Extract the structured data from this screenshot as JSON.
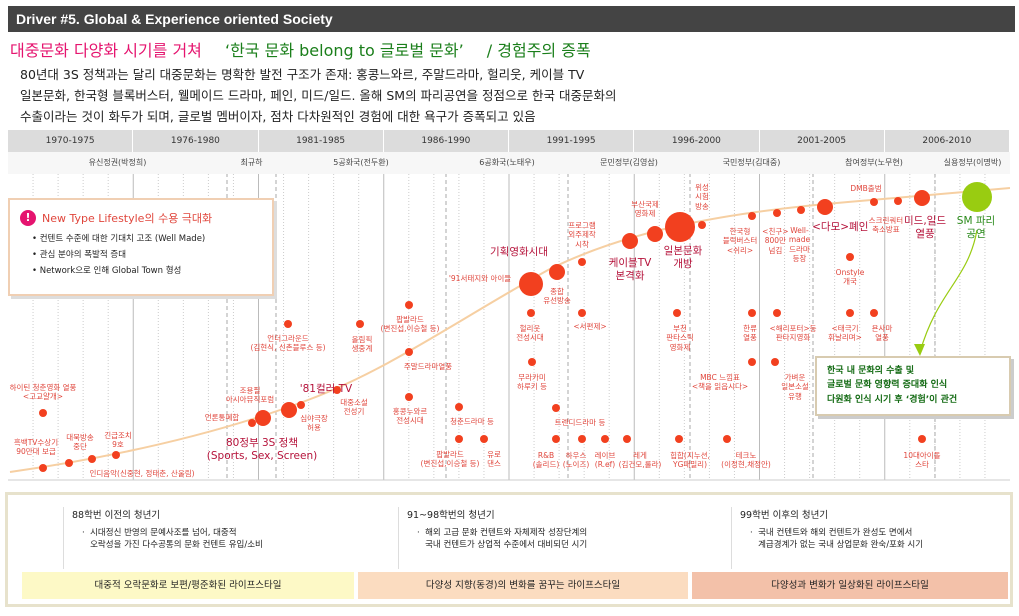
{
  "header": {
    "title": "Driver #5. Global & Experience oriented Society"
  },
  "headline": {
    "part1": "대중문화 다양화 시기를 거쳐",
    "part2": "‘한국 문화 belong to 글로벌 문화’",
    "part3": "/ 경험주의 증폭"
  },
  "intro": [
    "80년대 3S 정책과는 달리 대중문화는 명확한 발전 구조가 존재: 홍콩느와르, 주말드라마, 헐리웃, 케이블 TV",
    "일본문화, 한국형 블록버스터, 웰메이드 드라마, 페인, 미드/일드. 올해 SM의 파리공연을 정점으로 한국 대중문화의",
    "수출이라는 것이 화두가 되며, 글로벌 멤버이자, 점차 다차원적인 경험에 대한 욕구가 증폭되고 있음"
  ],
  "periods": [
    "1970-1975",
    "1976-1980",
    "1981-1985",
    "1986-1990",
    "1991-1995",
    "1996-2000",
    "2001-2005",
    "2006-2010"
  ],
  "governments": [
    "유신정권(박정희)",
    "최규하",
    "5공화국(전두환)",
    "6공화국(노태우)",
    "문민정부(김영삼)",
    "국민정부(김대중)",
    "참여정부(노무현)",
    "실용정부(이명박)"
  ],
  "infobox": {
    "icon": "exclamation-icon",
    "title": "New Type Lifestyle의 수용 극대화",
    "bullets": [
      "• 컨텐트 수준에 대한 기대치 고조 (Well Made)",
      "• 관심 분야의 폭발적 증대",
      "• Network으로 인해 Global Town 형성"
    ]
  },
  "greenbox": [
    "한국 내 문화의 수출 및",
    "글로벌 문화 영향력 증대화 인식",
    "다원화 인식 시기 후 ‘경험’이 관건"
  ],
  "colors": {
    "dot": "#f2401f",
    "highlight_dot": "#99cc11",
    "curve": "#f6cfa2",
    "header_bg": "#444444",
    "pink": "#e5146f",
    "green": "#1b7f1b"
  },
  "events": [
    "흑백TV수상기\n90만대 보급",
    "하이틴 청춘영화 열풍\n<고교얄개>",
    "대북방송\n중단",
    "인디음악(신중현, 정태춘, 산울림)",
    "긴급조치\n9호",
    "언론통폐합",
    "80정부 3S 정책\n(Sports, Sex, Screen)",
    "조용필\n아시아뮤직포럼",
    "'81컬러 TV",
    "심야극장\n허용",
    "대중소설\n전성기",
    "언더그라운드\n(김현식, 신촌블루스 등)",
    "올림픽\n생중계",
    "팝발라드\n(변진섭,이승철 등)",
    "주말드라마열풍",
    "홍콩누와르\n전성시대",
    "청춘드라마 등",
    "팝발라드\n(변진섭,이승철 등)",
    "유로\n댄스",
    "'91서태지와 아이들",
    "기획영화시대",
    "종합\n유선방송",
    "프로그램\n외주제작\n시작",
    "케이블TV\n본격화",
    "부산국제\n영화제",
    "일본문화\n개방",
    "위성\n시험\n방송",
    "한국형\n블럭버스터\n<쉬리>",
    "<친구>\n800만\n넘김",
    "Well-\nmade\n드라마\n등장",
    "<다모>폐인",
    "Onstyle\n개국",
    "DMB출범",
    "스크린쿼터\n축소방표",
    "미드,일드\n열풍",
    "SM 파리\n공연",
    "헐리웃\n전성시대",
    "<서편제>",
    "부천\n판타스틱\n영화제",
    "한류\n열풍",
    "<해리포터>등\n판타지영화",
    "<태극기\n휘날리며>",
    "욘사마\n열풍",
    "무라카미\n하루키 등",
    "MBC 느낌표\n<책을 읽읍시다>",
    "가벼운\n일본소설\n유행",
    "트렌디드라마 등",
    "R&B\n(솔리드)",
    "하우스\n(노이즈)",
    "레이브\n(R.ef)",
    "레게\n(김건모,룰라)",
    "힙합(지누션,\nYG패밀리)",
    "테크노\n(이정현,채정안)",
    "10대아이돌\n스타"
  ],
  "bottom": {
    "columns": [
      {
        "heading": "88학번 이전의 청년기",
        "body": "·  시대정신 반영의 문예사조를 넘어, 대중적\n   오락성을 가진 다수공통의 문화 컨텐트 유입/소비"
      },
      {
        "heading": "91~98학번의 청년기",
        "body": "·  해외 고급 문화 컨텐트와 자체제작 성장단계의\n   국내 컨텐트가 상업적 수준에서 대비되던 시기"
      },
      {
        "heading": "99학번 이후의 청년기",
        "body": "·  국내 컨텐트와 해외 컨텐트가 완성도 면에서\n   계급경계가 없는 국내 상업문화 완숙/포화 시기"
      }
    ],
    "bars": [
      {
        "label": "대중적 오락문화로 보편/평준화된 라이프스타일",
        "color": "#fdf9c6"
      },
      {
        "label": "다양성 지향(동경)의 변화를 꿈꾸는 라이프스타일",
        "color": "#fbdcc0"
      },
      {
        "label": "다양성과 변화가 일상화된 라이프스타일",
        "color": "#f3c1a9"
      }
    ]
  }
}
